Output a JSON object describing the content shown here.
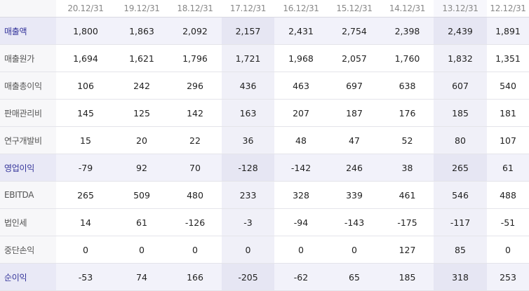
{
  "columns": [
    "20.12/31",
    "19.12/31",
    "18.12/31",
    "17.12/31",
    "16.12/31",
    "15.12/31",
    "14.12/31",
    "13.12/31",
    "12.12/31"
  ],
  "rows": [
    {
      "label": "매출액",
      "values": [
        "1,800",
        "1,863",
        "2,092",
        "2,157",
        "2,431",
        "2,754",
        "2,398",
        "2,439",
        "1,891"
      ]
    },
    {
      "label": "매출원가",
      "values": [
        "1,694",
        "1,621",
        "1,796",
        "1,721",
        "1,968",
        "2,057",
        "1,760",
        "1,832",
        "1,351"
      ]
    },
    {
      "label": "매출총이익",
      "values": [
        "106",
        "242",
        "296",
        "436",
        "463",
        "697",
        "638",
        "607",
        "540"
      ]
    },
    {
      "label": "판매관리비",
      "values": [
        "145",
        "125",
        "142",
        "163",
        "207",
        "187",
        "176",
        "185",
        "181"
      ]
    },
    {
      "label": "연구개발비",
      "values": [
        "15",
        "20",
        "22",
        "36",
        "48",
        "47",
        "52",
        "80",
        "107"
      ]
    },
    {
      "label": "영업이익",
      "values": [
        "-79",
        "92",
        "70",
        "-128",
        "-142",
        "246",
        "38",
        "265",
        "61"
      ]
    },
    {
      "label": "EBITDA",
      "values": [
        "265",
        "509",
        "480",
        "233",
        "328",
        "339",
        "461",
        "546",
        "488"
      ]
    },
    {
      "label": "법인세",
      "values": [
        "14",
        "61",
        "-126",
        "-3",
        "-94",
        "-143",
        "-175",
        "-117",
        "-51"
      ]
    },
    {
      "label": "중단손익",
      "values": [
        "0",
        "0",
        "0",
        "0",
        "0",
        "0",
        "127",
        "85",
        "0"
      ]
    },
    {
      "label": "순이익",
      "values": [
        "-53",
        "74",
        "166",
        "-205",
        "-62",
        "65",
        "185",
        "318",
        "253"
      ]
    }
  ]
}
